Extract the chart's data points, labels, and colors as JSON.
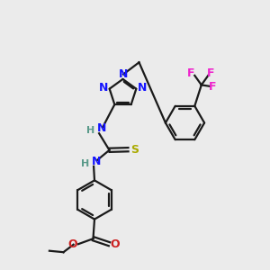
{
  "background_color": "#ebebeb",
  "bond_color": "#1a1a1a",
  "N_color": "#1414ff",
  "H_color": "#5a9a8a",
  "O_color": "#cc2222",
  "S_color": "#aaaa00",
  "F_color": "#ee22cc",
  "figsize": [
    3.0,
    3.0
  ],
  "dpi": 100,
  "xlim": [
    0,
    10
  ],
  "ylim": [
    0,
    10
  ]
}
